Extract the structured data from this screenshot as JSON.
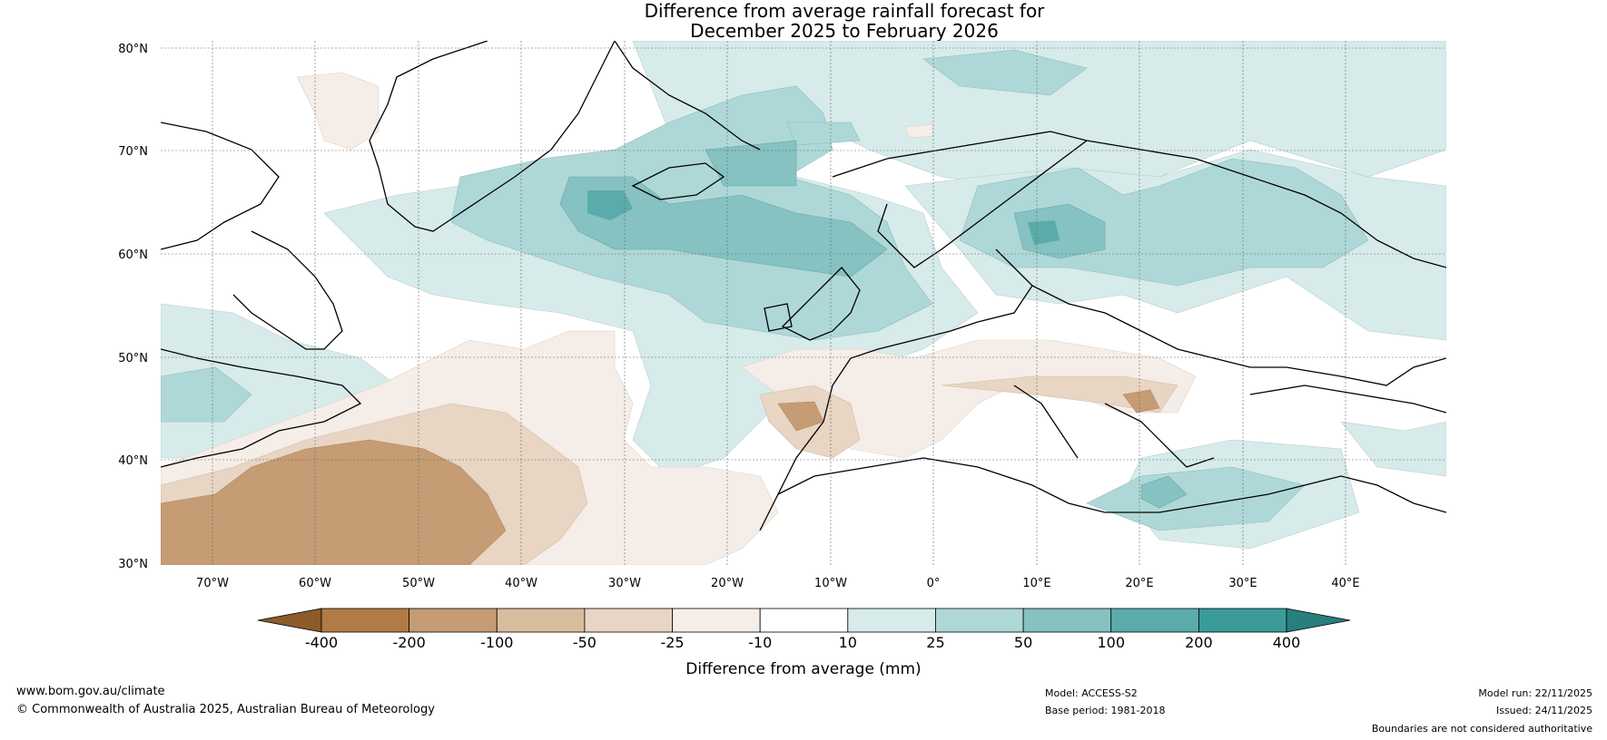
{
  "title": {
    "line1": "Difference from average rainfall forecast for",
    "line2": "December 2025 to February 2026"
  },
  "lat_labels": [
    "80°N",
    "70°N",
    "60°N",
    "50°N",
    "40°N",
    "30°N"
  ],
  "lon_labels": [
    "70°W",
    "60°W",
    "50°W",
    "40°W",
    "30°W",
    "20°W",
    "10°W",
    "0°",
    "10°E",
    "20°E",
    "30°E",
    "40°E"
  ],
  "colorbar": {
    "label": "Difference from average (mm)",
    "ticks": [
      "-400",
      "-200",
      "-100",
      "-50",
      "-25",
      "-10",
      "10",
      "25",
      "50",
      "100",
      "200",
      "400"
    ],
    "colors": [
      "#8c5a2b",
      "#b27a45",
      "#c59c74",
      "#d8bc9e",
      "#e8d5c3",
      "#f5ede7",
      "#ffffff",
      "#d6ebea",
      "#aed8d7",
      "#85c2c1",
      "#5aacab",
      "#3a9b99",
      "#287f7c"
    ]
  },
  "footer": {
    "url": "www.bom.gov.au/climate",
    "copyright": "© Commonwealth of Australia 2025, Australian Bureau of Meteorology",
    "model": "Model: ACCESS-S2",
    "base_period": "Base period: 1981-2018",
    "model_run": "Model run: 22/11/2025",
    "issued": "Issued: 24/11/2025",
    "disclaimer": "Boundaries are not considered authoritative"
  }
}
